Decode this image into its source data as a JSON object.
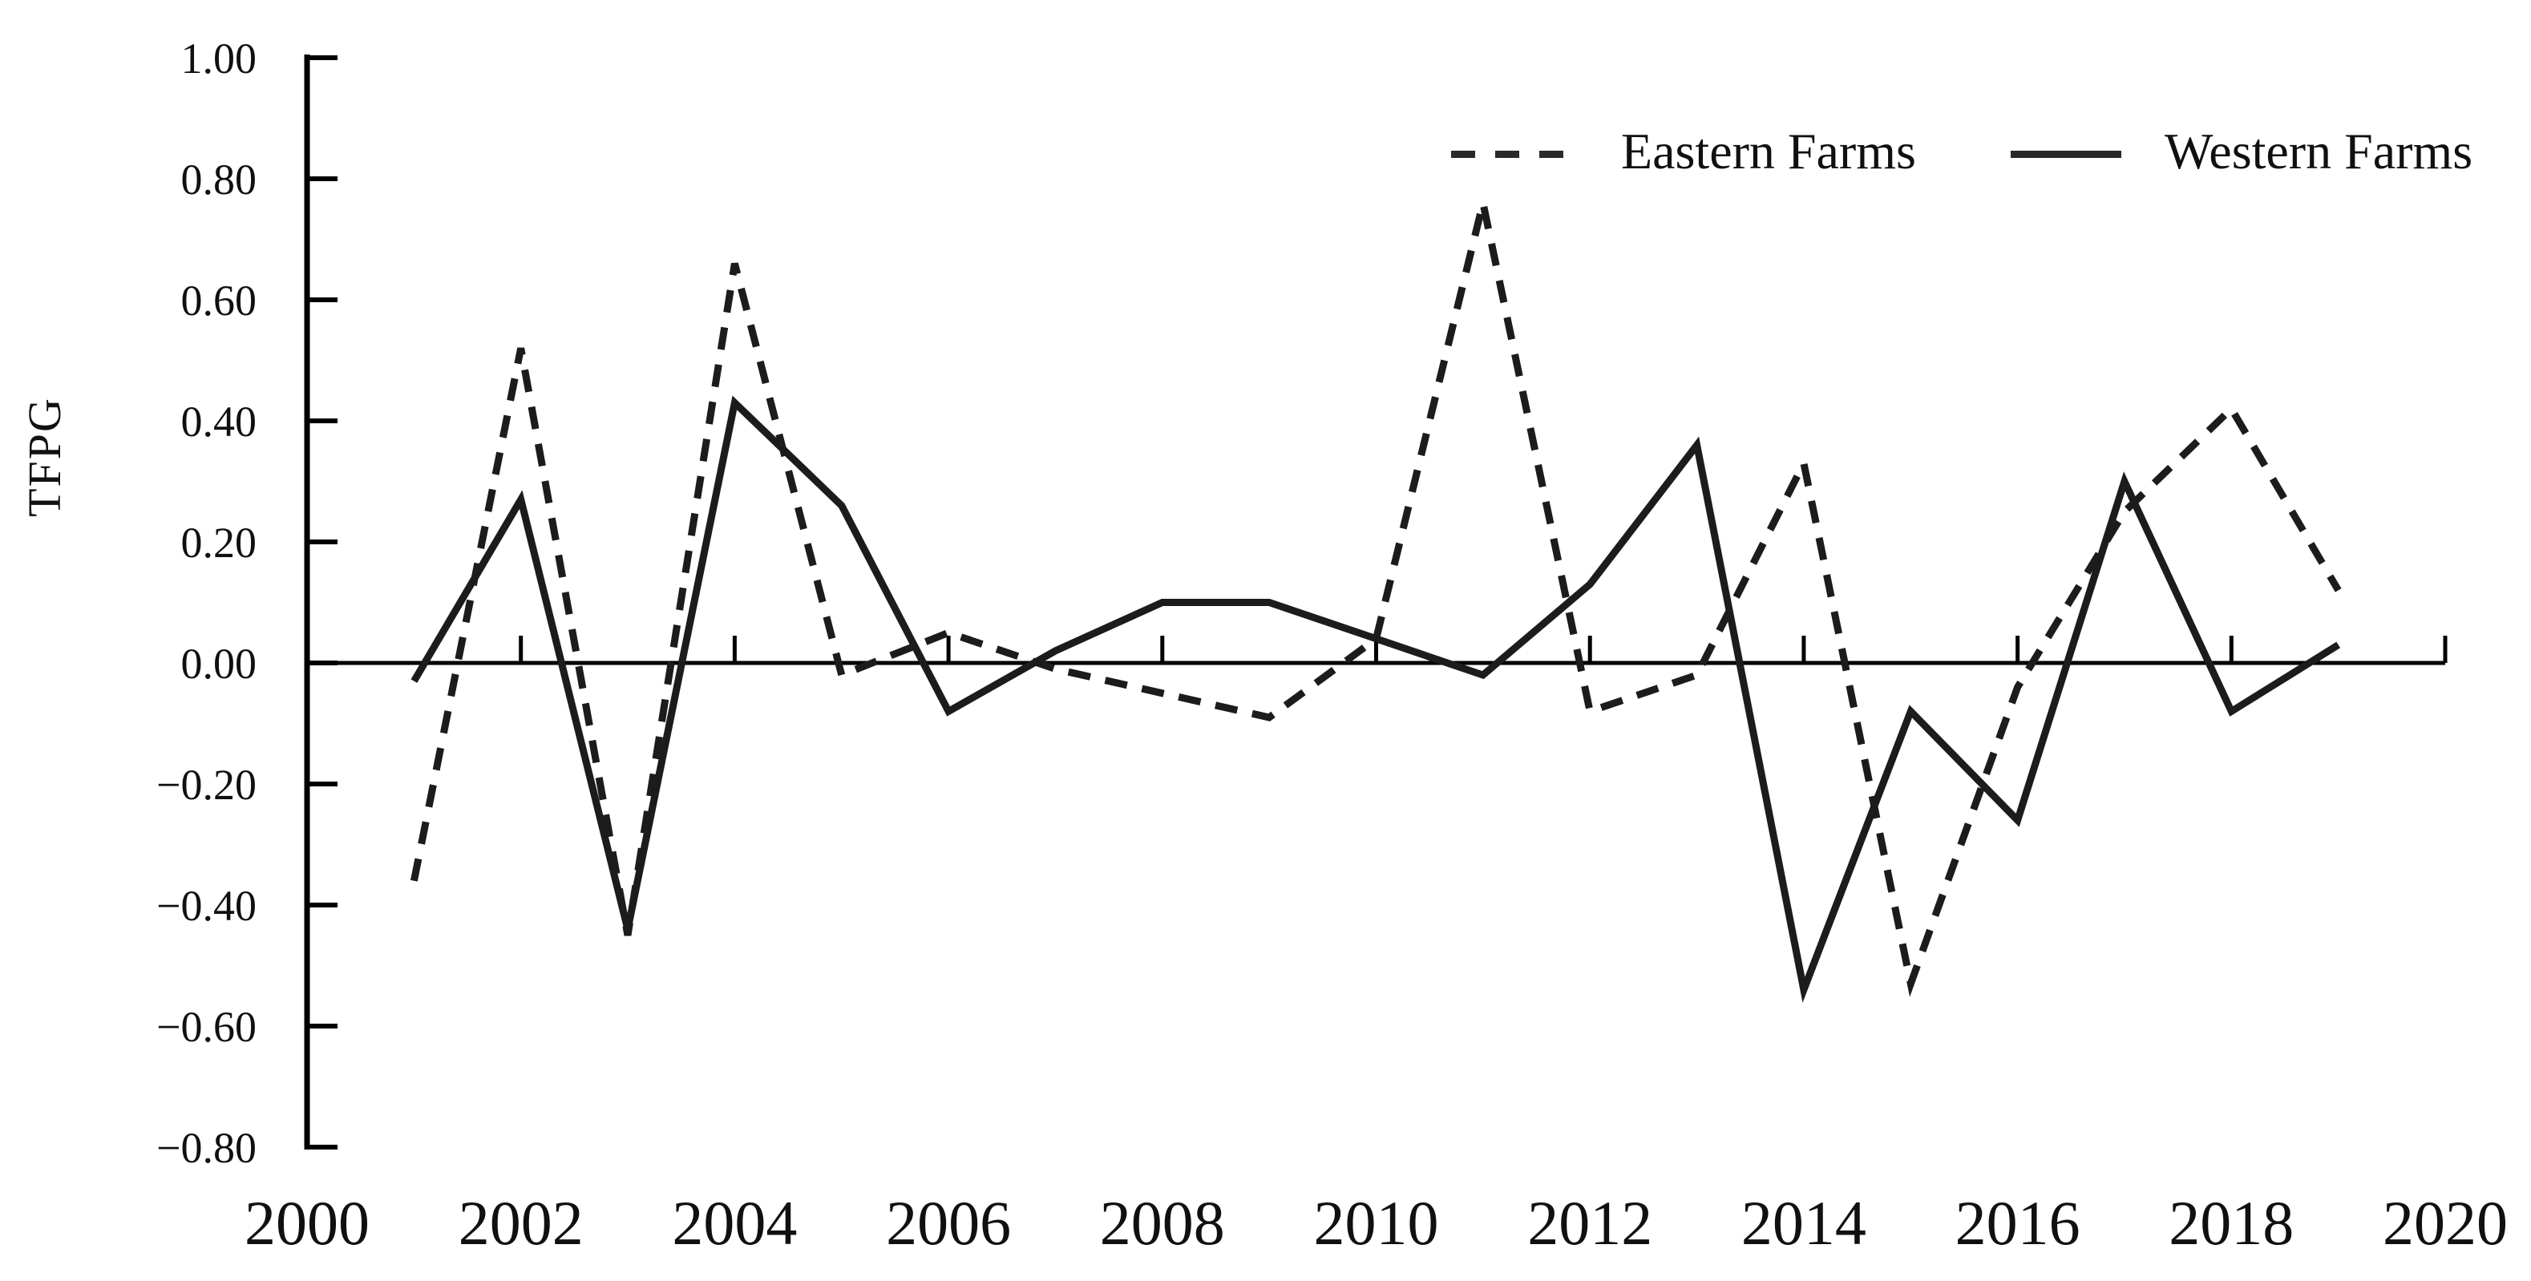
{
  "page": {
    "background": "#ffffff",
    "text_color": "#101010",
    "line_color": "#1c1c1c",
    "axis_color": "#000000"
  },
  "chart_data": {
    "type": "line",
    "title": "",
    "xlabel": "",
    "ylabel": "TFPG",
    "x": [
      2001,
      2002,
      2003,
      2004,
      2005,
      2006,
      2007,
      2008,
      2009,
      2010,
      2011,
      2012,
      2013,
      2014,
      2015,
      2016,
      2017,
      2018,
      2019
    ],
    "series": [
      {
        "name": "Eastern Farms",
        "style": "dashed",
        "color": "#1c1c1c",
        "values": [
          -0.36,
          0.52,
          -0.45,
          0.66,
          -0.02,
          0.05,
          -0.01,
          -0.05,
          -0.09,
          0.04,
          0.76,
          -0.08,
          -0.02,
          0.33,
          -0.53,
          -0.04,
          0.25,
          0.42,
          0.12
        ]
      },
      {
        "name": "Western Farms",
        "style": "solid",
        "color": "#1c1c1c",
        "values": [
          -0.03,
          0.27,
          -0.44,
          0.43,
          0.26,
          -0.08,
          0.02,
          0.1,
          0.1,
          0.04,
          -0.02,
          0.13,
          0.36,
          -0.54,
          -0.08,
          -0.26,
          0.3,
          -0.08,
          0.03
        ]
      }
    ],
    "xlim": [
      2000,
      2020
    ],
    "ylim": [
      -0.8,
      1.0
    ],
    "x_ticks": [
      2000,
      2002,
      2004,
      2006,
      2008,
      2010,
      2012,
      2014,
      2016,
      2018,
      2020
    ],
    "x_tick_labels": [
      "2000",
      "2002",
      "2004",
      "2006",
      "2008",
      "2010",
      "2012",
      "2014",
      "2016",
      "2018",
      "2020"
    ],
    "y_ticks": [
      1.0,
      0.8,
      0.6,
      0.4,
      0.2,
      0.0,
      -0.2,
      -0.4,
      -0.6,
      -0.8
    ],
    "y_tick_labels": [
      "1.00",
      "0.80",
      "0.60",
      "0.40",
      "0.20",
      "0.00",
      "−0.20",
      "−0.40",
      "−0.60",
      "−0.80"
    ],
    "grid": false,
    "legend_position": "top-right",
    "zero_axis_line": true
  }
}
